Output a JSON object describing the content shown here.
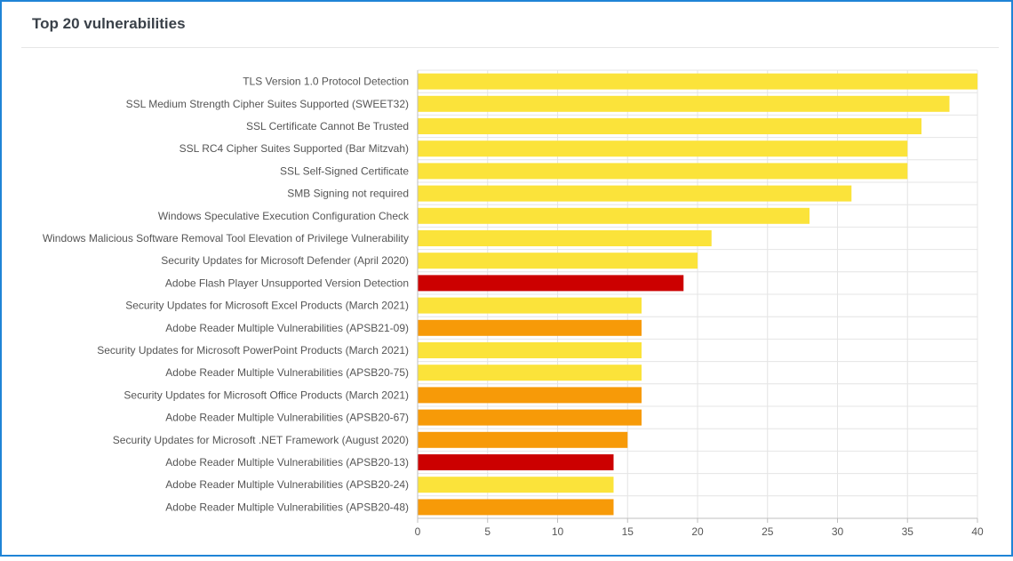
{
  "panel": {
    "title": "Top 20 vulnerabilities"
  },
  "colors": {
    "low": "#fbe33a",
    "medium": "#f79a08",
    "high": "#cc0000",
    "grid": "#e4e4e4",
    "axis": "#bfbfbf",
    "label_text": "#555555",
    "frame": "#1f84d6"
  },
  "chart_data": {
    "type": "bar",
    "orientation": "horizontal",
    "title": "",
    "xlabel": "",
    "ylabel": "",
    "xlim": [
      0,
      40
    ],
    "x_ticks": [
      0,
      5,
      10,
      15,
      20,
      25,
      30,
      35,
      40
    ],
    "grid": true,
    "legend": "none",
    "categories": [
      "TLS Version 1.0 Protocol Detection",
      "SSL Medium Strength Cipher Suites Supported (SWEET32)",
      "SSL Certificate Cannot Be Trusted",
      "SSL RC4 Cipher Suites Supported (Bar Mitzvah)",
      "SSL Self-Signed Certificate",
      "SMB Signing not required",
      "Windows Speculative Execution Configuration Check",
      "Windows Malicious Software Removal Tool Elevation of Privilege Vulnerability",
      "Security Updates for Microsoft Defender (April 2020)",
      "Adobe Flash Player Unsupported Version Detection",
      "Security Updates for Microsoft Excel Products (March 2021)",
      "Adobe Reader Multiple Vulnerabilities (APSB21-09)",
      "Security Updates for Microsoft PowerPoint Products (March 2021)",
      "Adobe Reader Multiple Vulnerabilities (APSB20-75)",
      "Security Updates for Microsoft Office Products (March 2021)",
      "Adobe Reader Multiple Vulnerabilities (APSB20-67)",
      "Security Updates for Microsoft .NET Framework (August 2020)",
      "Adobe Reader Multiple Vulnerabilities (APSB20-13)",
      "Adobe Reader Multiple Vulnerabilities (APSB20-24)",
      "Adobe Reader Multiple Vulnerabilities (APSB20-48)"
    ],
    "values": [
      40,
      38,
      36,
      35,
      35,
      31,
      28,
      21,
      20,
      19,
      16,
      16,
      16,
      16,
      16,
      16,
      15,
      14,
      14,
      14
    ],
    "bar_colors": [
      "#fbe33a",
      "#fbe33a",
      "#fbe33a",
      "#fbe33a",
      "#fbe33a",
      "#fbe33a",
      "#fbe33a",
      "#fbe33a",
      "#fbe33a",
      "#cc0000",
      "#fbe33a",
      "#f79a08",
      "#fbe33a",
      "#fbe33a",
      "#f79a08",
      "#f79a08",
      "#f79a08",
      "#cc0000",
      "#fbe33a",
      "#f79a08"
    ]
  }
}
